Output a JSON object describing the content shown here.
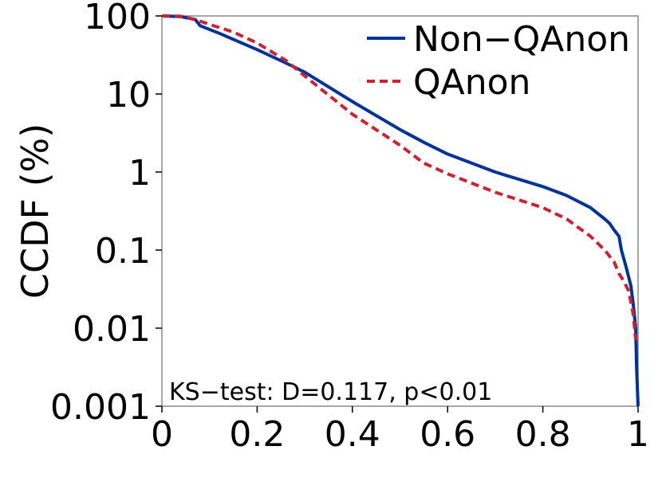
{
  "chart_data": {
    "type": "line",
    "title": "",
    "xlabel": "",
    "ylabel": "CCDF (%)",
    "xscale": "linear",
    "yscale": "log",
    "xlim": [
      0,
      1
    ],
    "ylim": [
      0.001,
      100
    ],
    "xticks": [
      0,
      0.2,
      0.4,
      0.6,
      0.8,
      1
    ],
    "xtick_labels": [
      "0",
      "0.2",
      "0.4",
      "0.6",
      "0.8",
      "1"
    ],
    "yticks": [
      0.001,
      0.01,
      0.1,
      1,
      10,
      100
    ],
    "ytick_labels": [
      "0.001",
      "0.01",
      "0.1",
      "1",
      "10",
      "100"
    ],
    "grid": false,
    "legend_position": "top-right",
    "annotation": "KS−test: D=0.117, p<0.01",
    "series": [
      {
        "name": "Non−QAnon",
        "color": "#003399",
        "style": "solid",
        "x": [
          0,
          0.04,
          0.07,
          0.08,
          0.12,
          0.2,
          0.26,
          0.3,
          0.4,
          0.5,
          0.55,
          0.6,
          0.7,
          0.8,
          0.85,
          0.9,
          0.93,
          0.94,
          0.95,
          0.96,
          0.965,
          0.975,
          0.985,
          0.99,
          0.995,
          0.997,
          1.0
        ],
        "y": [
          100,
          98,
          90,
          75,
          60,
          37,
          25,
          19,
          8,
          3.5,
          2.4,
          1.7,
          1.0,
          0.65,
          0.5,
          0.35,
          0.25,
          0.22,
          0.18,
          0.15,
          0.1,
          0.06,
          0.035,
          0.02,
          0.01,
          0.003,
          0.001
        ]
      },
      {
        "name": "QAnon",
        "color": "#cc2233",
        "style": "dashed",
        "x": [
          0,
          0.04,
          0.07,
          0.1,
          0.15,
          0.2,
          0.26,
          0.3,
          0.4,
          0.5,
          0.55,
          0.6,
          0.7,
          0.8,
          0.85,
          0.9,
          0.93,
          0.95,
          0.96,
          0.97,
          0.98,
          0.99,
          0.995
        ],
        "y": [
          100,
          99,
          90,
          78,
          62,
          45,
          27,
          17,
          5.5,
          2.2,
          1.3,
          0.95,
          0.55,
          0.35,
          0.25,
          0.15,
          0.1,
          0.07,
          0.05,
          0.04,
          0.03,
          0.015,
          0.007
        ]
      }
    ]
  }
}
